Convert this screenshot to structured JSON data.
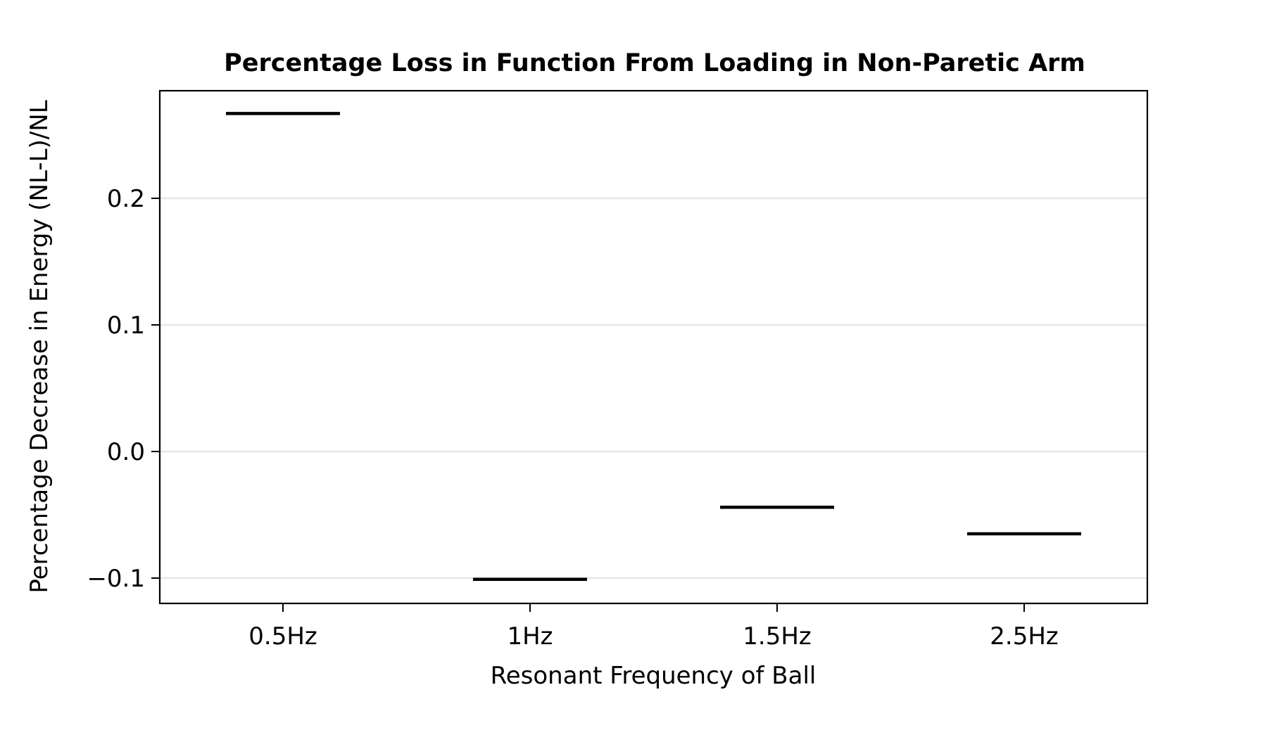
{
  "chart_data": {
    "type": "line",
    "title": "Percentage Loss in Function From Loading in Non-Paretic Arm",
    "xlabel": "Resonant Frequency of Ball",
    "ylabel": "Percentage Decrease in Energy (NL-L)/NL",
    "categories": [
      "0.5Hz",
      "1Hz",
      "1.5Hz",
      "2.5Hz"
    ],
    "values": [
      0.267,
      -0.101,
      -0.044,
      -0.065
    ],
    "ylim": [
      -0.12,
      0.285
    ],
    "yticks": [
      -0.1,
      0.0,
      0.1,
      0.2
    ],
    "ytick_labels": [
      "−0.1",
      "0.0",
      "0.1",
      "0.2"
    ],
    "grid": "horizontal",
    "mark_style": "horizontal-segment",
    "colors": {
      "marks": "#000000",
      "grid": "#e6e6e6",
      "frame": "#000000"
    }
  }
}
